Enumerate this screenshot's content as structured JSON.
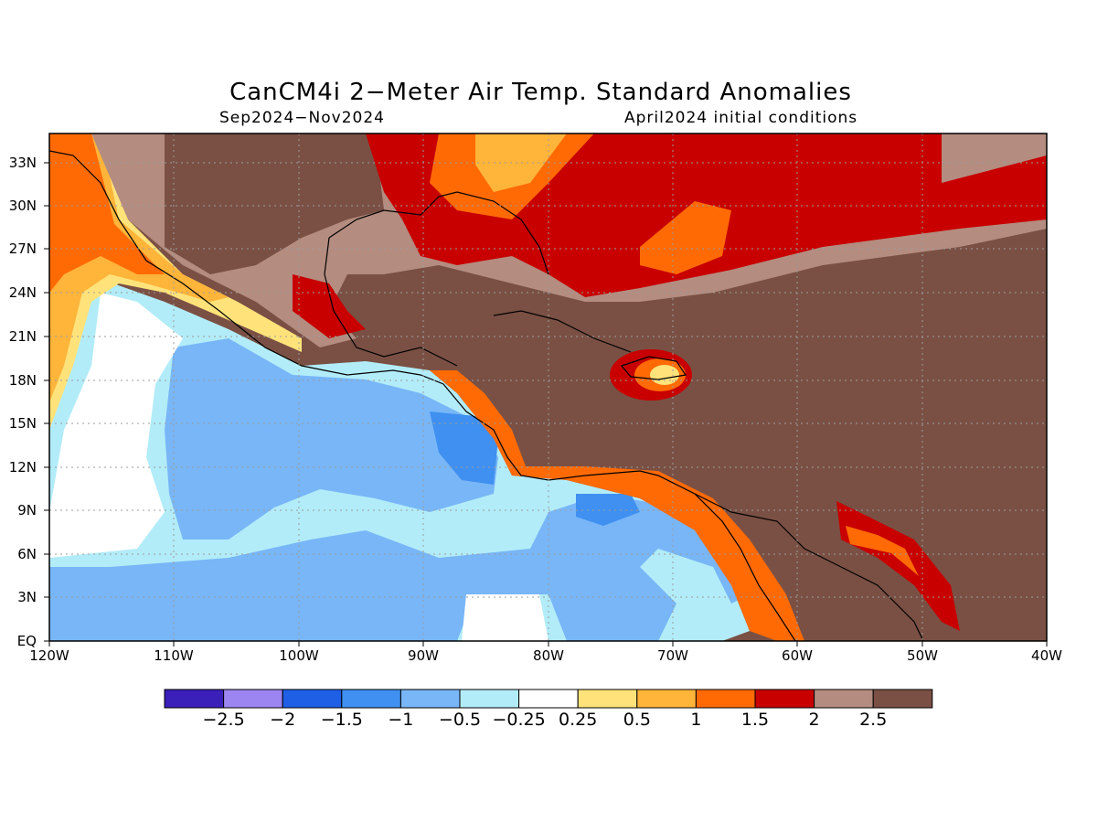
{
  "title": "CanCM4i 2−Meter Air Temp. Standard Anomalies",
  "subtitle_left": "Sep2024−Nov2024",
  "subtitle_right": "April2024 initial conditions",
  "y_axis_labels": [
    "33N",
    "30N",
    "27N",
    "24N",
    "21N",
    "18N",
    "15N",
    "12N",
    "9N",
    "6N",
    "3N",
    "EQ"
  ],
  "x_axis_labels": [
    "120W",
    "110W",
    "100W",
    "90W",
    "80W",
    "70W",
    "60W",
    "50W",
    "40W"
  ],
  "colorbar": {
    "colors": [
      "#3a1fb8",
      "#9c85f0",
      "#1e5fe6",
      "#3f90f0",
      "#78b6f7",
      "#b2ecf8",
      "#ffffff",
      "#ffe37a",
      "#ffb43a",
      "#ff6a05",
      "#c80000",
      "#b48c80",
      "#7a5044"
    ],
    "labels": [
      "−2.5",
      "−2",
      "−1.5",
      "−1",
      "−0.5",
      "−0.25",
      "0.25",
      "0.5",
      "1",
      "1.5",
      "2",
      "2.5"
    ]
  }
}
